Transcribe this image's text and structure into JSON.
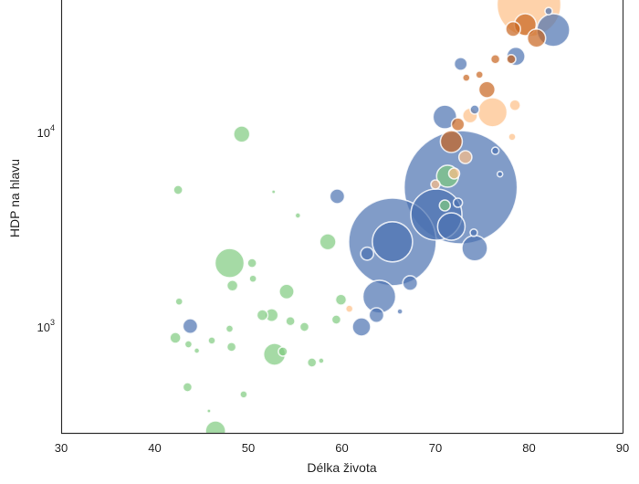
{
  "chart_data": {
    "type": "scatter",
    "title": "",
    "xlabel": "Délka života",
    "ylabel": "HDP na hlavu",
    "xlim": [
      30,
      90
    ],
    "ylim": [
      285,
      48000
    ],
    "yscale": "log",
    "xticks": [
      "30",
      "40",
      "50",
      "60",
      "70",
      "80",
      "90"
    ],
    "xtick_values": [
      30,
      40,
      50,
      60,
      70,
      80,
      90
    ],
    "yticks": [
      {
        "base": "10",
        "exp": "3",
        "value": 1000
      },
      {
        "base": "10",
        "exp": "4",
        "value": 10000
      }
    ],
    "grid": false,
    "group_colors": [
      "#4c72b0",
      "#7fcb7f",
      "#c8641e",
      "#fdbf86"
    ],
    "points_format": [
      "life_expectancy",
      "gdp_per_capita",
      "population_millions",
      "group_index"
    ],
    "points": [
      [
        72.7,
        5220,
        1300,
        0
      ],
      [
        65.4,
        2736,
        779,
        0
      ],
      [
        65.4,
        2740,
        164,
        0
      ],
      [
        70.1,
        3780,
        265,
        0
      ],
      [
        71.7,
        3280,
        76,
        0
      ],
      [
        74.2,
        2540,
        66,
        0
      ],
      [
        64.0,
        1430,
        110,
        0
      ],
      [
        67.3,
        1680,
        22,
        0
      ],
      [
        62.7,
        2380,
        17,
        0
      ],
      [
        62.1,
        1000,
        34,
        0
      ],
      [
        63.7,
        1150,
        22,
        0
      ],
      [
        59.5,
        4690,
        22,
        0
      ],
      [
        43.8,
        1010,
        22,
        0
      ],
      [
        71.0,
        12000,
        57,
        0
      ],
      [
        72.7,
        22500,
        17,
        0
      ],
      [
        82.6,
        33600,
        110,
        0
      ],
      [
        78.6,
        24600,
        34,
        0
      ],
      [
        74.1,
        3050,
        5.4,
        0
      ],
      [
        72.4,
        4350,
        8.5,
        0
      ],
      [
        74.2,
        13100,
        8.5,
        0
      ],
      [
        76.4,
        8050,
        5.4,
        0
      ],
      [
        82.1,
        42000,
        5.4,
        0
      ],
      [
        76.9,
        6100,
        3,
        0
      ],
      [
        66.2,
        1200,
        3,
        0
      ],
      [
        79.6,
        35800,
        49,
        2
      ],
      [
        80.8,
        30500,
        34,
        2
      ],
      [
        78.3,
        34000,
        22,
        2
      ],
      [
        75.5,
        16600,
        27,
        2
      ],
      [
        71.7,
        8980,
        49,
        2
      ],
      [
        72.4,
        11000,
        17,
        2
      ],
      [
        73.3,
        19100,
        5.4,
        2
      ],
      [
        74.7,
        19800,
        5.4,
        2
      ],
      [
        78.1,
        23800,
        8.5,
        2
      ],
      [
        76.4,
        23800,
        8.5,
        2
      ],
      [
        80.0,
        45400,
        414,
        3
      ],
      [
        76.1,
        12700,
        87,
        3
      ],
      [
        73.7,
        12200,
        22,
        3
      ],
      [
        78.5,
        13800,
        12,
        3
      ],
      [
        78.2,
        9480,
        5.4,
        3
      ],
      [
        60.8,
        1240,
        5.4,
        3
      ],
      [
        73.2,
        7460,
        17,
        3
      ],
      [
        72.0,
        6150,
        12,
        3
      ],
      [
        70.0,
        5400,
        8.5,
        3
      ],
      [
        48.0,
        2130,
        87,
        1
      ],
      [
        52.8,
        723,
        49,
        1
      ],
      [
        46.5,
        292,
        41,
        1
      ],
      [
        49.3,
        9800,
        27,
        1
      ],
      [
        58.5,
        2740,
        27,
        1
      ],
      [
        71.3,
        5960,
        49,
        1
      ],
      [
        71.0,
        4210,
        12,
        1
      ],
      [
        52.5,
        1150,
        17,
        1
      ],
      [
        54.1,
        1520,
        22,
        1
      ],
      [
        51.5,
        1150,
        12,
        1
      ],
      [
        50.4,
        2130,
        8.5,
        1
      ],
      [
        50.5,
        1770,
        5.4,
        1
      ],
      [
        48.3,
        1630,
        12,
        1
      ],
      [
        59.9,
        1380,
        12,
        1
      ],
      [
        59.4,
        1090,
        8.5,
        1
      ],
      [
        56.0,
        1000,
        8.5,
        1
      ],
      [
        54.5,
        1070,
        8.5,
        1
      ],
      [
        48.2,
        789,
        8.5,
        1
      ],
      [
        46.1,
        851,
        5.4,
        1
      ],
      [
        48.0,
        979,
        5.4,
        1
      ],
      [
        42.2,
        879,
        12,
        1
      ],
      [
        42.6,
        1350,
        5.4,
        1
      ],
      [
        43.6,
        814,
        5.4,
        1
      ],
      [
        56.8,
        656,
        8.5,
        1
      ],
      [
        43.5,
        490,
        8.5,
        1
      ],
      [
        49.5,
        450,
        5.4,
        1
      ],
      [
        42.5,
        5060,
        8.5,
        1
      ],
      [
        44.5,
        755,
        3,
        1
      ],
      [
        57.8,
        670,
        3,
        1
      ],
      [
        53.7,
        747,
        8.5,
        1
      ],
      [
        45.8,
        370,
        1.5,
        1
      ],
      [
        52.7,
        4950,
        1.5,
        1
      ],
      [
        55.3,
        3740,
        3,
        1
      ]
    ]
  }
}
